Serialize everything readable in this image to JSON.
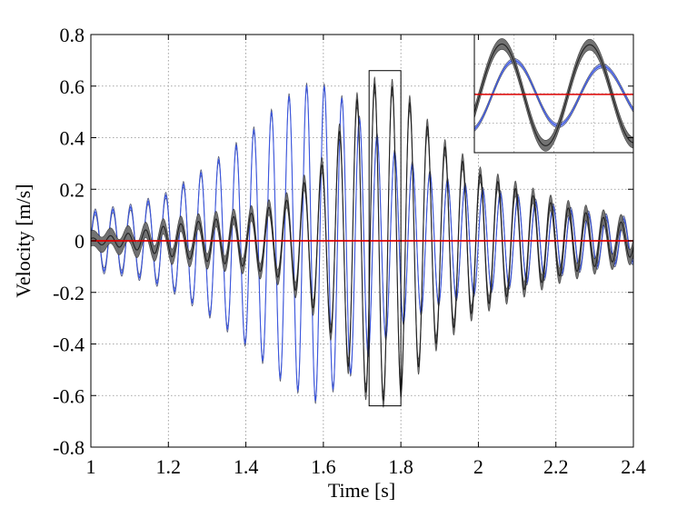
{
  "chart_data": {
    "type": "line",
    "title": "",
    "xlabel": "Time [s]",
    "ylabel": "Velocity [m/s]",
    "xlim": [
      1,
      2.4
    ],
    "ylim": [
      -0.8,
      0.8
    ],
    "xticks": [
      1,
      1.2,
      1.4,
      1.6,
      1.8,
      2,
      2.2,
      2.4
    ],
    "xtick_labels": [
      "1",
      "1.2",
      "1.4",
      "1.6",
      "1.8",
      "2",
      "2.2",
      "2.4"
    ],
    "yticks": [
      -0.8,
      -0.6,
      -0.4,
      -0.2,
      0,
      0.2,
      0.4,
      0.6,
      0.8
    ],
    "ytick_labels": [
      "-0.8",
      "-0.6",
      "-0.4",
      "-0.2",
      "0",
      "0.2",
      "0.4",
      "0.6",
      "0.8"
    ],
    "grid": true,
    "series": [
      {
        "color": "#3a55e0",
        "band_color": "#8a9cf4",
        "oscillation_hz": 22,
        "envelope_x": [
          1.0,
          1.05,
          1.1,
          1.2,
          1.3,
          1.4,
          1.5,
          1.58,
          1.65,
          1.7,
          1.8,
          1.9,
          2.0,
          2.1,
          2.2,
          2.3,
          2.4
        ],
        "envelope_amplitude": [
          0.11,
          0.12,
          0.13,
          0.18,
          0.28,
          0.4,
          0.55,
          0.62,
          0.55,
          0.46,
          0.32,
          0.24,
          0.2,
          0.17,
          0.13,
          0.1,
          0.08
        ],
        "band_halfwidth": 0.012
      },
      {
        "color": "#222222",
        "band_color": "#6b6b6b",
        "oscillation_hz": 22,
        "envelope_x": [
          1.0,
          1.1,
          1.2,
          1.3,
          1.4,
          1.5,
          1.6,
          1.65,
          1.7,
          1.75,
          1.8,
          1.85,
          1.9,
          2.0,
          2.1,
          2.2,
          2.3,
          2.4
        ],
        "envelope_amplitude": [
          0.01,
          0.03,
          0.06,
          0.08,
          0.1,
          0.15,
          0.3,
          0.45,
          0.58,
          0.62,
          0.58,
          0.48,
          0.38,
          0.26,
          0.2,
          0.14,
          0.1,
          0.06
        ],
        "band_halfwidth": 0.03
      },
      {
        "color": "#dd0000",
        "constant_value": 0
      }
    ],
    "zoom_box": {
      "x": [
        1.718,
        1.8
      ],
      "y": [
        -0.64,
        0.66
      ]
    },
    "inset": {
      "location": "top-right",
      "xlim": [
        1.718,
        1.8
      ],
      "ylim": [
        -0.7,
        0.72
      ]
    }
  }
}
